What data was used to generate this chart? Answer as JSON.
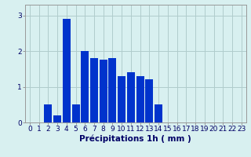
{
  "categories": [
    0,
    1,
    2,
    3,
    4,
    5,
    6,
    7,
    8,
    9,
    10,
    11,
    12,
    13,
    14,
    15,
    16,
    17,
    18,
    19,
    20,
    21,
    22,
    23
  ],
  "values": [
    0.0,
    0.0,
    0.5,
    0.2,
    2.9,
    0.5,
    2.0,
    1.8,
    1.75,
    1.8,
    1.3,
    1.4,
    1.3,
    1.2,
    0.5,
    0.0,
    0.0,
    0.0,
    0.0,
    0.0,
    0.0,
    0.0,
    0.0,
    0.0
  ],
  "bar_color": "#0033cc",
  "background_color": "#d8f0f0",
  "grid_color": "#b0cccc",
  "xlabel": "Précipitations 1h ( mm )",
  "ylim": [
    0,
    3.3
  ],
  "yticks": [
    0,
    1,
    2,
    3
  ],
  "xlim": [
    -0.5,
    23.5
  ],
  "xlabel_fontsize": 7.5,
  "tick_fontsize": 6.5,
  "bar_width": 0.85
}
